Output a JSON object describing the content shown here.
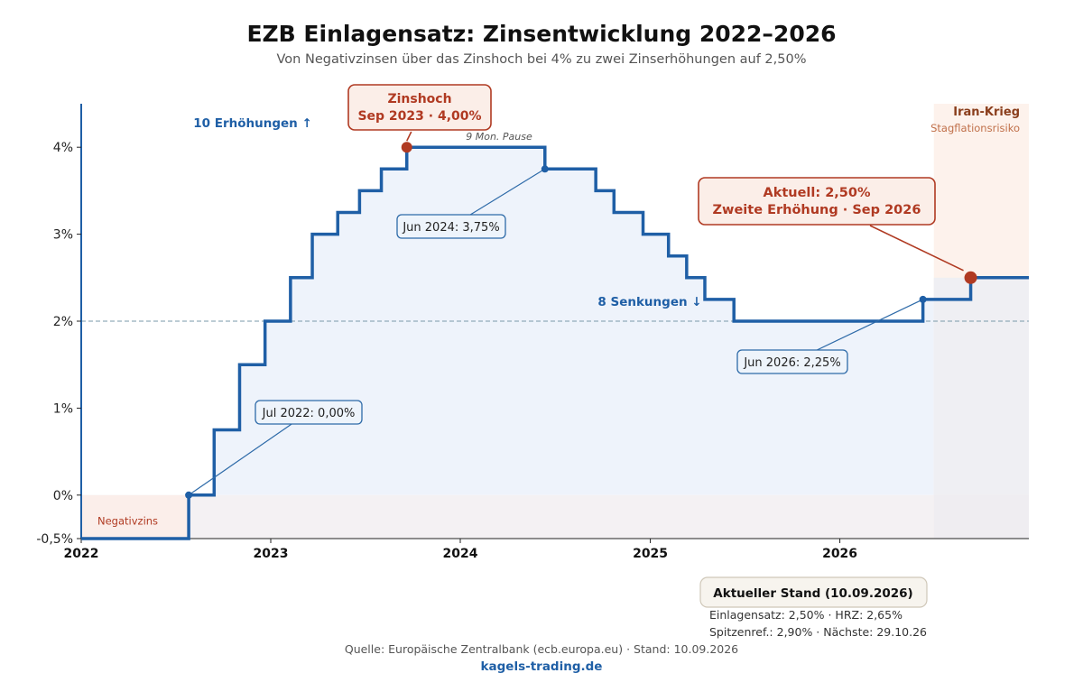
{
  "title": "EZB Einlagensatz: Zinsentwicklung 2022–2026",
  "subtitle": "Von Negativzinsen über das Zinshoch bei 4% zu zwei Zinserhöhungen auf 2,50%",
  "colors": {
    "line": "#1f5fa6",
    "accent": "#b03a22",
    "area": "#eef3fb",
    "negative_zone": "#fbeeea",
    "iran_zone": "#fdf1ea",
    "reference": "#7a9aaa"
  },
  "chart_data": {
    "type": "line",
    "step": true,
    "ylim": [
      -0.5,
      4.5
    ],
    "xlim": [
      "2022-01-01",
      "2026-12-31"
    ],
    "yticks": [
      -0.5,
      0,
      1,
      2,
      3,
      4
    ],
    "ytick_labels": [
      "-0,5%",
      "0%",
      "1%",
      "2%",
      "3%",
      "4%"
    ],
    "xticks": [
      "2022-01-01",
      "2023-01-01",
      "2024-01-01",
      "2025-01-01",
      "2026-01-01"
    ],
    "xtick_labels": [
      "2022",
      "2023",
      "2024",
      "2025",
      "2026"
    ],
    "grid": false,
    "reference_line": {
      "y": 2.0,
      "style": "dashed"
    },
    "series": [
      {
        "points": [
          {
            "date": "2022-01-01",
            "rate": -0.5
          },
          {
            "date": "2022-07-27",
            "rate": 0.0
          },
          {
            "date": "2022-09-14",
            "rate": 0.75
          },
          {
            "date": "2022-11-02",
            "rate": 1.5
          },
          {
            "date": "2022-12-21",
            "rate": 2.0
          },
          {
            "date": "2023-02-08",
            "rate": 2.5
          },
          {
            "date": "2023-03-22",
            "rate": 3.0
          },
          {
            "date": "2023-05-10",
            "rate": 3.25
          },
          {
            "date": "2023-06-21",
            "rate": 3.5
          },
          {
            "date": "2023-08-02",
            "rate": 3.75
          },
          {
            "date": "2023-09-20",
            "rate": 4.0
          },
          {
            "date": "2024-06-12",
            "rate": 3.75
          },
          {
            "date": "2024-09-18",
            "rate": 3.5
          },
          {
            "date": "2024-10-23",
            "rate": 3.25
          },
          {
            "date": "2024-12-18",
            "rate": 3.0
          },
          {
            "date": "2025-02-05",
            "rate": 2.75
          },
          {
            "date": "2025-03-12",
            "rate": 2.5
          },
          {
            "date": "2025-04-16",
            "rate": 2.25
          },
          {
            "date": "2025-06-11",
            "rate": 2.0
          },
          {
            "date": "2026-06-10",
            "rate": 2.25
          },
          {
            "date": "2026-09-10",
            "rate": 2.5
          },
          {
            "date": "2026-12-31",
            "rate": 2.5
          }
        ]
      }
    ],
    "zones": [
      {
        "label": "Negativzins",
        "x_from": "2022-01-01",
        "x_to": "2022-07-27",
        "y_from": -0.5,
        "y_to": 0.0
      },
      {
        "label": "Iran-Krieg",
        "sublabel": "Stagflationsrisiko",
        "x_from": "2026-07-01",
        "x_to": "2026-12-31"
      }
    ],
    "annotations": [
      {
        "kind": "peak",
        "text_line1": "Zinshoch",
        "text_line2": "Sep 2023 · 4,00%",
        "date": "2023-09-20",
        "rate": 4.0
      },
      {
        "kind": "current",
        "text_line1": "Aktuell: 2,50%",
        "text_line2": "Zweite Erhöhung · Sep 2026",
        "date": "2026-09-10",
        "rate": 2.5
      },
      {
        "kind": "callout",
        "text": "Jul 2022: 0,00%",
        "date": "2022-07-27",
        "rate": 0.0
      },
      {
        "kind": "callout",
        "text": "Jun 2024: 3,75%",
        "date": "2024-06-12",
        "rate": 3.75
      },
      {
        "kind": "callout",
        "text": "Jun 2026: 2,25%",
        "date": "2026-06-10",
        "rate": 2.25
      },
      {
        "kind": "note",
        "text": "9 Mon. Pause"
      },
      {
        "kind": "hikes",
        "text": "10 Erhöhungen ↑"
      },
      {
        "kind": "cuts",
        "text": "8 Senkungen ↓"
      }
    ]
  },
  "stand_box": {
    "title": "Aktueller Stand (10.09.2026)",
    "line1": "Einlagensatz: 2,50% · HRZ: 2,65%",
    "line2": "Spitzenref.: 2,90% · Nächste: 29.10.26"
  },
  "source": "Quelle: Europäische Zentralbank (ecb.europa.eu) · Stand: 10.09.2026",
  "brand": "kagels-trading.de"
}
